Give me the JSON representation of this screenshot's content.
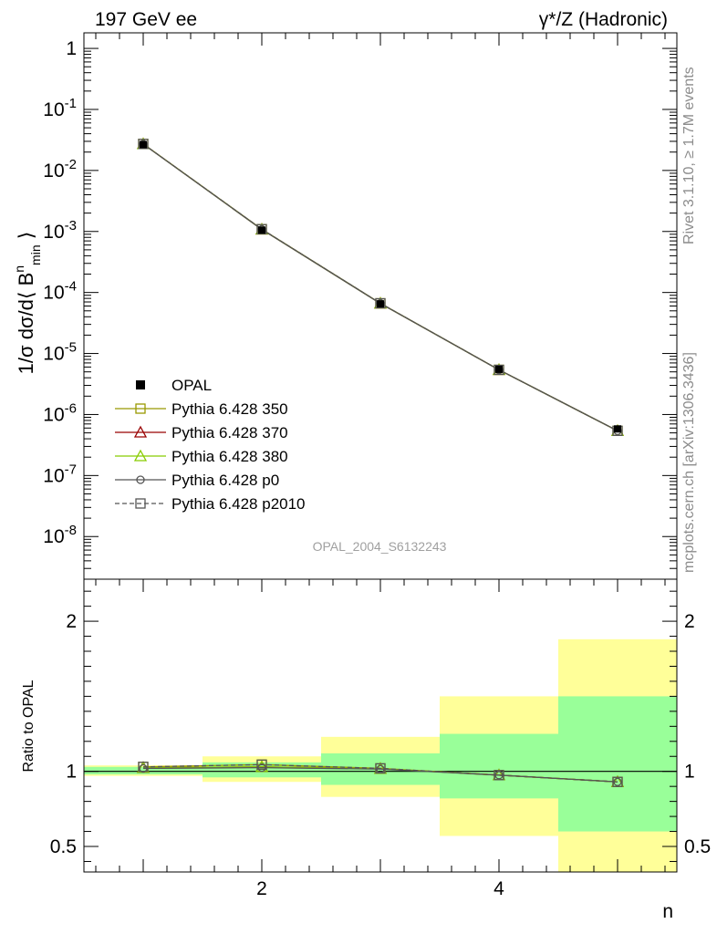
{
  "header": {
    "left": "197 GeV ee",
    "right": "γ*/Z (Hadronic)"
  },
  "side_text": {
    "rivet": "Rivet 3.1.10, ≥ 1.7M events",
    "mcplots": "mcplots.cern.ch [arXiv:1306.3436]"
  },
  "watermark": "OPAL_2004_S6132243",
  "chart_data": [
    {
      "type": "line",
      "panel": "main",
      "ylabel": "1/σ dσ/d⟨ B^n_min ⟩",
      "yscale": "log",
      "ylim": [
        2e-09,
        1.8
      ],
      "xlim": [
        0.5,
        5.5
      ],
      "y_ticks": [
        {
          "v": 1,
          "label": "1"
        },
        {
          "v": 0.1,
          "label": "10^-1"
        },
        {
          "v": 0.01,
          "label": "10^-2"
        },
        {
          "v": 0.001,
          "label": "10^-3"
        },
        {
          "v": 0.0001,
          "label": "10^-4"
        },
        {
          "v": 1e-05,
          "label": "10^-5"
        },
        {
          "v": 1e-06,
          "label": "10^-6"
        },
        {
          "v": 1e-07,
          "label": "10^-7"
        },
        {
          "v": 1e-08,
          "label": "10^-8"
        }
      ],
      "x": [
        1,
        2,
        3,
        4,
        5
      ],
      "data": {
        "name": "OPAL",
        "y": [
          0.0265,
          0.00105,
          6.5e-05,
          5.5e-06,
          5.8e-07
        ]
      },
      "series": [
        {
          "name": "Pythia 6.428 350",
          "color": "#999900",
          "marker": "square",
          "dash": false,
          "y": [
            0.0272,
            0.00109,
            6.65e-05,
            5.4e-06,
            5.4e-07
          ]
        },
        {
          "name": "Pythia 6.428 370",
          "color": "#990000",
          "marker": "triangle",
          "dash": false,
          "y": [
            0.0271,
            0.00108,
            6.62e-05,
            5.4e-06,
            5.4e-07
          ]
        },
        {
          "name": "Pythia 6.428 380",
          "color": "#88cc00",
          "marker": "triangle",
          "dash": false,
          "y": [
            0.0271,
            0.00108,
            6.62e-05,
            5.4e-06,
            5.4e-07
          ]
        },
        {
          "name": "Pythia 6.428 p0",
          "color": "#555555",
          "marker": "circle",
          "dash": false,
          "y": [
            0.027,
            0.00108,
            6.62e-05,
            5.4e-06,
            5.4e-07
          ]
        },
        {
          "name": "Pythia 6.428 p2010",
          "color": "#555555",
          "marker": "square",
          "dash": true,
          "y": [
            0.0272,
            0.00109,
            6.65e-05,
            5.4e-06,
            5.4e-07
          ]
        }
      ],
      "legend_position": "bottom-left"
    },
    {
      "type": "line",
      "panel": "ratio",
      "ylabel": "Ratio to OPAL",
      "xlabel": "n",
      "ylim": [
        0.33,
        2.28
      ],
      "xlim": [
        0.5,
        5.5
      ],
      "y_ticks": [
        {
          "v": 0.5,
          "label": "0.5"
        },
        {
          "v": 1,
          "label": "1"
        },
        {
          "v": 2,
          "label": "2"
        }
      ],
      "x_ticks": [
        {
          "v": 2,
          "label": "2"
        },
        {
          "v": 4,
          "label": "4"
        }
      ],
      "bands": [
        {
          "x0": 0.5,
          "x1": 1.5,
          "green": [
            0.98,
            1.03
          ],
          "yellow": [
            0.97,
            1.04
          ]
        },
        {
          "x0": 1.5,
          "x1": 2.5,
          "green": [
            0.96,
            1.06
          ],
          "yellow": [
            0.93,
            1.1
          ]
        },
        {
          "x0": 2.5,
          "x1": 3.5,
          "green": [
            0.91,
            1.12
          ],
          "yellow": [
            0.83,
            1.23
          ]
        },
        {
          "x0": 3.5,
          "x1": 4.5,
          "green": [
            0.82,
            1.25
          ],
          "yellow": [
            0.57,
            1.5
          ]
        },
        {
          "x0": 4.5,
          "x1": 5.5,
          "green": [
            0.6,
            1.5
          ],
          "yellow": [
            0.33,
            1.88
          ]
        }
      ],
      "colors": {
        "green": "#99ff99",
        "yellow": "#ffff99"
      },
      "x": [
        1,
        2,
        3,
        4,
        5
      ],
      "series": [
        {
          "name": "Pythia 6.428 350",
          "y": [
            1.03,
            1.045,
            1.02,
            0.975,
            0.93
          ]
        },
        {
          "name": "Pythia 6.428 370",
          "y": [
            1.025,
            1.03,
            1.018,
            0.975,
            0.93
          ]
        },
        {
          "name": "Pythia 6.428 380",
          "y": [
            1.025,
            1.03,
            1.018,
            0.975,
            0.93
          ]
        },
        {
          "name": "Pythia 6.428 p0",
          "y": [
            1.02,
            1.025,
            1.015,
            0.975,
            0.93
          ]
        },
        {
          "name": "Pythia 6.428 p2010",
          "y": [
            1.03,
            1.045,
            1.02,
            0.975,
            0.93
          ]
        }
      ]
    }
  ]
}
